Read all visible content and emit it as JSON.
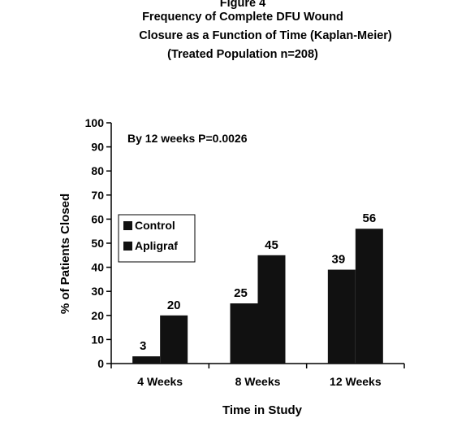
{
  "chart_data": {
    "type": "bar",
    "title": "Figure 4",
    "subtitle_lines": [
      "Frequency of Complete DFU Wound",
      "Closure as a Function of Time (Kaplan-Meier)",
      "(Treated Population n=208)"
    ],
    "xlabel": "Time in Study",
    "ylabel": "% of Patients Closed",
    "annotation": "By 12 weeks P=0.0026",
    "categories": [
      "4 Weeks",
      "8 Weeks",
      "12 Weeks"
    ],
    "series": [
      {
        "name": "Control",
        "values": [
          3,
          25,
          39
        ]
      },
      {
        "name": "Apligraf",
        "values": [
          20,
          45,
          56
        ]
      }
    ],
    "ylim": [
      0,
      100
    ],
    "yticks": [
      0,
      10,
      20,
      30,
      40,
      50,
      60,
      70,
      80,
      90,
      100
    ],
    "legend_position": "middle-left",
    "grid": false,
    "colors": {
      "bars": "#111111",
      "axes": "#000000",
      "background": "#ffffff"
    }
  }
}
